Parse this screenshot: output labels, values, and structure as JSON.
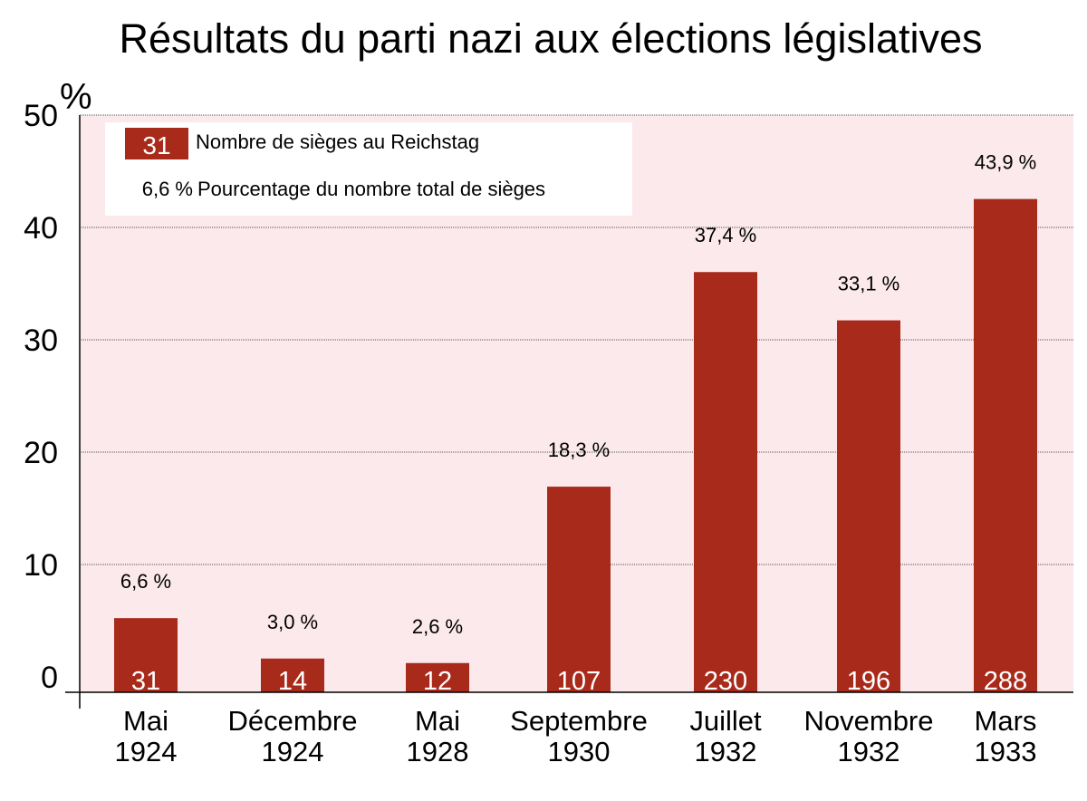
{
  "chart_data": {
    "type": "bar",
    "title": "Résultats du parti nazi aux élections législatives",
    "ylabel": "%",
    "ylim": [
      0,
      50
    ],
    "yticks": [
      "0",
      "10",
      "20",
      "30",
      "40",
      "50"
    ],
    "grid": true,
    "categories": [
      [
        "Mai",
        "1924"
      ],
      [
        "Décembre",
        "1924"
      ],
      [
        "Mai",
        "1928"
      ],
      [
        "Septembre",
        "1930"
      ],
      [
        "Juillet",
        "1932"
      ],
      [
        "Novembre",
        "1932"
      ],
      [
        "Mars",
        "1933"
      ]
    ],
    "values": [
      6.6,
      3.0,
      2.6,
      18.3,
      37.4,
      33.1,
      43.9
    ],
    "value_labels": [
      "6,6 %",
      "3,0 %",
      "2,6 %",
      "18,3 %",
      "37,4 %",
      "33,1 %",
      "43,9 %"
    ],
    "seats": [
      "31",
      "14",
      "12",
      "107",
      "230",
      "196",
      "288"
    ],
    "legend": {
      "placement": "top-left",
      "swatch_label": "31",
      "seats_label": "Nombre de sièges au Reichstag",
      "pct_sample": "6,6 %",
      "pct_label": "Pourcentage du nombre total de sièges"
    },
    "colors": {
      "bar": "#a82a1a",
      "plot_bg": "#fbe9ec"
    }
  }
}
